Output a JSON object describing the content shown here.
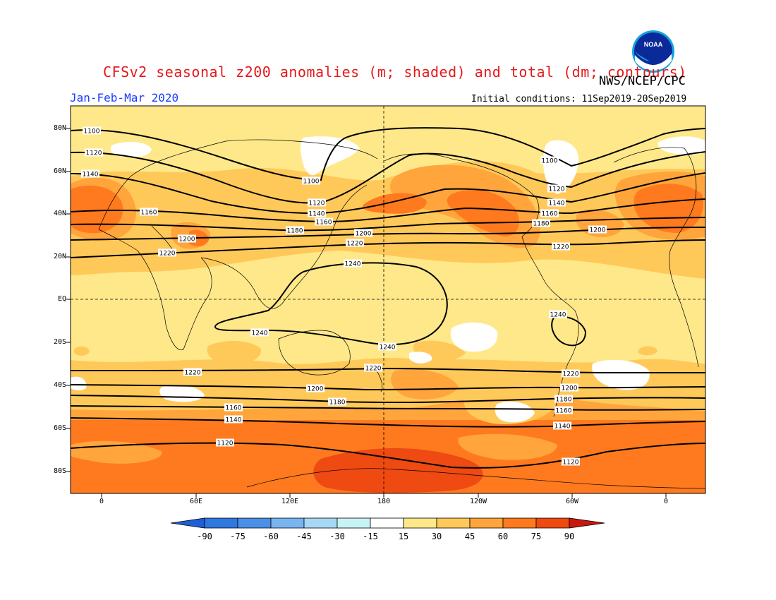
{
  "title": "CFSv2 seasonal z200 anomalies (m; shaded) and total (dm; contours)",
  "agency": "NWS/NCEP/CPC",
  "logo_text": "NOAA",
  "period": "Jan-Feb-Mar 2020",
  "initial_conditions": "Initial conditions: 11Sep2019-20Sep2019",
  "lat_labels": [
    "80N",
    "60N",
    "40N",
    "20N",
    "EQ",
    "20S",
    "40S",
    "60S",
    "80S"
  ],
  "lon_labels": [
    "0",
    "60E",
    "120E",
    "180",
    "120W",
    "60W",
    "0"
  ],
  "colorbar": {
    "labels": [
      "-90",
      "-75",
      "-60",
      "-45",
      "-30",
      "-15",
      "15",
      "30",
      "45",
      "60",
      "75",
      "90"
    ],
    "colors": [
      "#1f5fd8",
      "#2f78e0",
      "#4a90e6",
      "#78b4f0",
      "#a6d8f5",
      "#c8f3f5",
      "#ffffff",
      "#ffe88a",
      "#ffc95a",
      "#ffa53c",
      "#ff7a1e",
      "#ee4a12",
      "#c71a0e"
    ]
  },
  "shading_colors": {
    "c15": "#ffe88a",
    "c30": "#ffc95a",
    "c45": "#ffa53c",
    "c60": "#ff7a1e",
    "c75": "#ee4a12"
  },
  "contours": [
    {
      "value": "1100",
      "labels": [
        [
          130,
          185
        ],
        [
          441,
          256
        ],
        [
          779,
          227
        ]
      ]
    },
    {
      "value": "1120",
      "labels": [
        [
          133,
          216
        ],
        [
          449,
          287
        ],
        [
          789,
          267
        ],
        [
          319,
          627
        ],
        [
          809,
          654
        ]
      ]
    },
    {
      "value": "1140",
      "labels": [
        [
          128,
          246
        ],
        [
          449,
          302
        ],
        [
          789,
          287
        ],
        [
          331,
          594
        ],
        [
          797,
          603
        ]
      ]
    },
    {
      "value": "1160",
      "labels": [
        [
          211,
          300
        ],
        [
          459,
          314
        ],
        [
          779,
          302
        ],
        [
          331,
          577
        ],
        [
          799,
          581
        ]
      ]
    },
    {
      "value": "1180",
      "labels": [
        [
          418,
          326
        ],
        [
          767,
          316
        ],
        [
          478,
          569
        ],
        [
          799,
          565
        ]
      ]
    },
    {
      "value": "1200",
      "labels": [
        [
          265,
          338
        ],
        [
          515,
          330
        ],
        [
          847,
          325
        ],
        [
          447,
          550
        ],
        [
          807,
          549
        ]
      ]
    },
    {
      "value": "1220",
      "labels": [
        [
          237,
          358
        ],
        [
          503,
          344
        ],
        [
          795,
          349
        ],
        [
          273,
          527
        ],
        [
          529,
          521
        ],
        [
          809,
          529
        ]
      ]
    },
    {
      "value": "1240",
      "labels": [
        [
          500,
          373
        ],
        [
          368,
          471
        ],
        [
          549,
          491
        ],
        [
          791,
          445
        ]
      ]
    }
  ]
}
